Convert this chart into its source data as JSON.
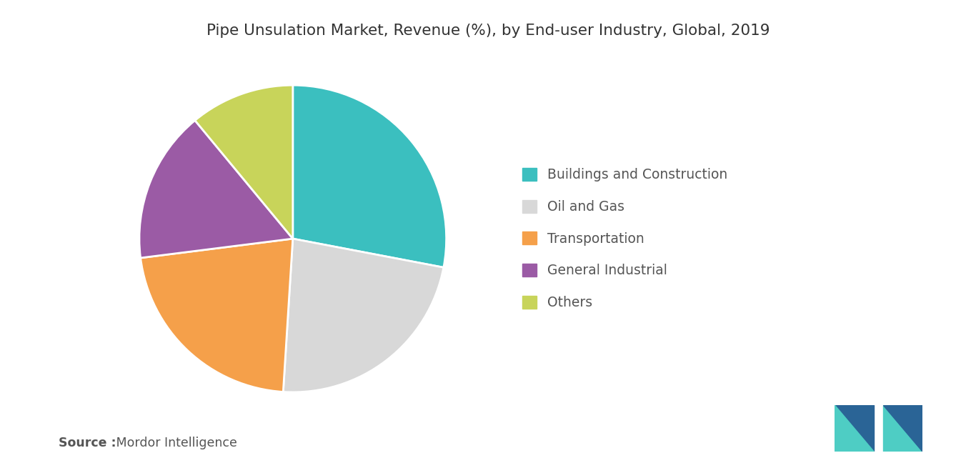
{
  "title": "Pipe Unsulation Market, Revenue (%), by End-user Industry, Global, 2019",
  "labels": [
    "Buildings and Construction",
    "Oil and Gas",
    "Transportation",
    "General Industrial",
    "Others"
  ],
  "values": [
    28,
    23,
    22,
    16,
    11
  ],
  "colors": [
    "#3bbfbf",
    "#d8d8d8",
    "#f5a04a",
    "#9b5ba5",
    "#c8d45a"
  ],
  "source_bold": "Source :",
  "source_normal": " Mordor Intelligence",
  "background_color": "#ffffff",
  "startangle": 90,
  "legend_fontsize": 13.5,
  "title_fontsize": 15.5
}
